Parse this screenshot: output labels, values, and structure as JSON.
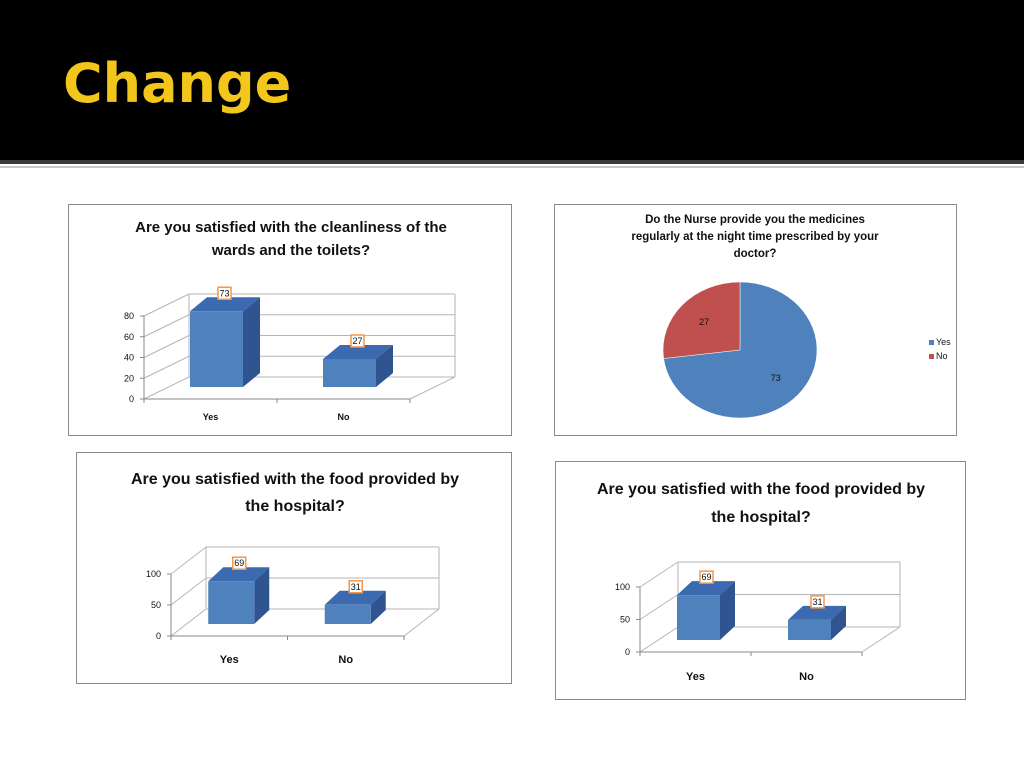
{
  "slide": {
    "title": "Change"
  },
  "colors": {
    "header_bg": "#000000",
    "title": "#f2c61a",
    "bar_front": "#4f81bd",
    "bar_top": "#3c6ab0",
    "bar_side": "#2f5490",
    "pie_yes": "#4f81bd",
    "pie_no": "#c0504d",
    "label_border": "#f79646"
  },
  "chart_data": [
    {
      "type": "bar",
      "title_lines": [
        "Are you satisfied with the cleanliness of the",
        "wards and the toilets?"
      ],
      "categories": [
        "Yes",
        "No"
      ],
      "values": [
        73,
        27
      ],
      "data_labels": [
        "73",
        "27"
      ],
      "yticks": [
        "0",
        "20",
        "40",
        "60",
        "80"
      ],
      "ylim": [
        0,
        80
      ],
      "style": "3d-column",
      "grid": true
    },
    {
      "type": "pie",
      "title_lines": [
        "Do the Nurse provide you the medicines",
        "regularly at the night time prescribed by your",
        "doctor?"
      ],
      "categories": [
        "Yes",
        "No"
      ],
      "values": [
        73,
        27
      ],
      "data_labels": [
        "73",
        "27"
      ],
      "legend": [
        "Yes",
        "No"
      ],
      "legend_position": "right"
    },
    {
      "type": "bar",
      "title_lines": [
        "Are you satisfied with the food provided by",
        "the hospital?"
      ],
      "categories": [
        "Yes",
        "No"
      ],
      "values": [
        69,
        31
      ],
      "data_labels": [
        "69",
        "31"
      ],
      "yticks": [
        "0",
        "50",
        "100"
      ],
      "ylim": [
        0,
        100
      ],
      "style": "3d-column",
      "grid": true
    },
    {
      "type": "bar",
      "title_lines": [
        "Are you satisfied with the food provided by",
        "the hospital?"
      ],
      "categories": [
        "Yes",
        "No"
      ],
      "values": [
        69,
        31
      ],
      "data_labels": [
        "69",
        "31"
      ],
      "yticks": [
        "0",
        "50",
        "100"
      ],
      "ylim": [
        0,
        100
      ],
      "style": "3d-column",
      "grid": true
    }
  ]
}
